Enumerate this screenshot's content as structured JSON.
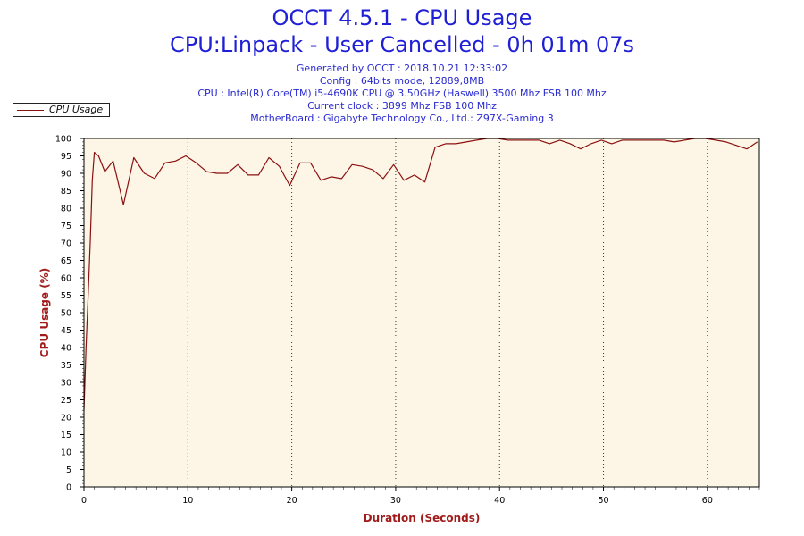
{
  "header": {
    "title_line1": "OCCT 4.5.1 - CPU Usage",
    "title_line2": "CPU:Linpack - User Cancelled - 0h 01m 07s",
    "info_lines": [
      "Generated by OCCT : 2018.10.21 12:33:02",
      "Config : 64bits mode, 12889,8MB",
      "CPU : Intel(R) Core(TM) i5-4690K CPU @ 3.50GHz (Haswell) 3500 Mhz FSB 100 Mhz",
      "Current clock : 3899 Mhz FSB 100 Mhz",
      "MotherBoard : Gigabyte Technology Co., Ltd.: Z97X-Gaming 3"
    ]
  },
  "colors": {
    "series": "#8b1111",
    "plot_background": "#fdf6e6",
    "title": "#1f1fd6",
    "axis_label": "#a11b1b"
  },
  "chart_data": {
    "type": "line",
    "xlabel": "Duration (Seconds)",
    "ylabel": "CPU Usage (%)",
    "xlim": [
      0,
      65
    ],
    "ylim": [
      0,
      100
    ],
    "x_ticks": [
      0,
      10,
      20,
      30,
      40,
      50,
      60
    ],
    "y_ticks": [
      0,
      5,
      10,
      15,
      20,
      25,
      30,
      35,
      40,
      45,
      50,
      55,
      60,
      65,
      70,
      75,
      80,
      85,
      90,
      95,
      100
    ],
    "grid": "vertical dotted at major x ticks",
    "legend_position": "top-left, outside plot",
    "series": [
      {
        "name": "CPU Usage",
        "x": [
          0,
          0.2,
          0.4,
          0.6,
          0.8,
          1.0,
          1.4,
          2.0,
          2.8,
          3.8,
          4.8,
          5.8,
          6.8,
          7.8,
          8.8,
          9.8,
          10.8,
          11.8,
          12.8,
          13.8,
          14.8,
          15.8,
          16.8,
          17.8,
          18.8,
          19.8,
          20.8,
          21.8,
          22.8,
          23.8,
          24.8,
          25.8,
          26.8,
          27.8,
          28.8,
          29.8,
          30.8,
          31.8,
          32.8,
          33.8,
          34.8,
          35.8,
          36.8,
          37.8,
          38.8,
          39.8,
          40.8,
          41.8,
          42.8,
          43.8,
          44.8,
          45.8,
          46.8,
          47.8,
          48.8,
          49.8,
          50.8,
          51.8,
          52.8,
          53.8,
          54.8,
          55.8,
          56.8,
          57.8,
          58.8,
          59.8,
          60.8,
          61.8,
          62.8,
          63.8,
          64.8
        ],
        "values": [
          22,
          40,
          55,
          70,
          88,
          96,
          95,
          90.5,
          93.5,
          81,
          94.5,
          90,
          88.5,
          93,
          93.5,
          95,
          93,
          90.5,
          90,
          90,
          92.5,
          89.5,
          89.5,
          94.5,
          92,
          86.5,
          93,
          93,
          88,
          89,
          88.5,
          92.5,
          92,
          91,
          88.5,
          92.5,
          88,
          89.5,
          87.5,
          97.5,
          98.5,
          98.5,
          99,
          99.5,
          100,
          100,
          99.5,
          99.5,
          99.5,
          99.5,
          98.5,
          99.5,
          98.5,
          97,
          98.5,
          99.5,
          98.5,
          99.5,
          99.5,
          99.5,
          99.5,
          99.5,
          99,
          99.5,
          100,
          100,
          99.5,
          99,
          98,
          97,
          99
        ]
      }
    ]
  }
}
